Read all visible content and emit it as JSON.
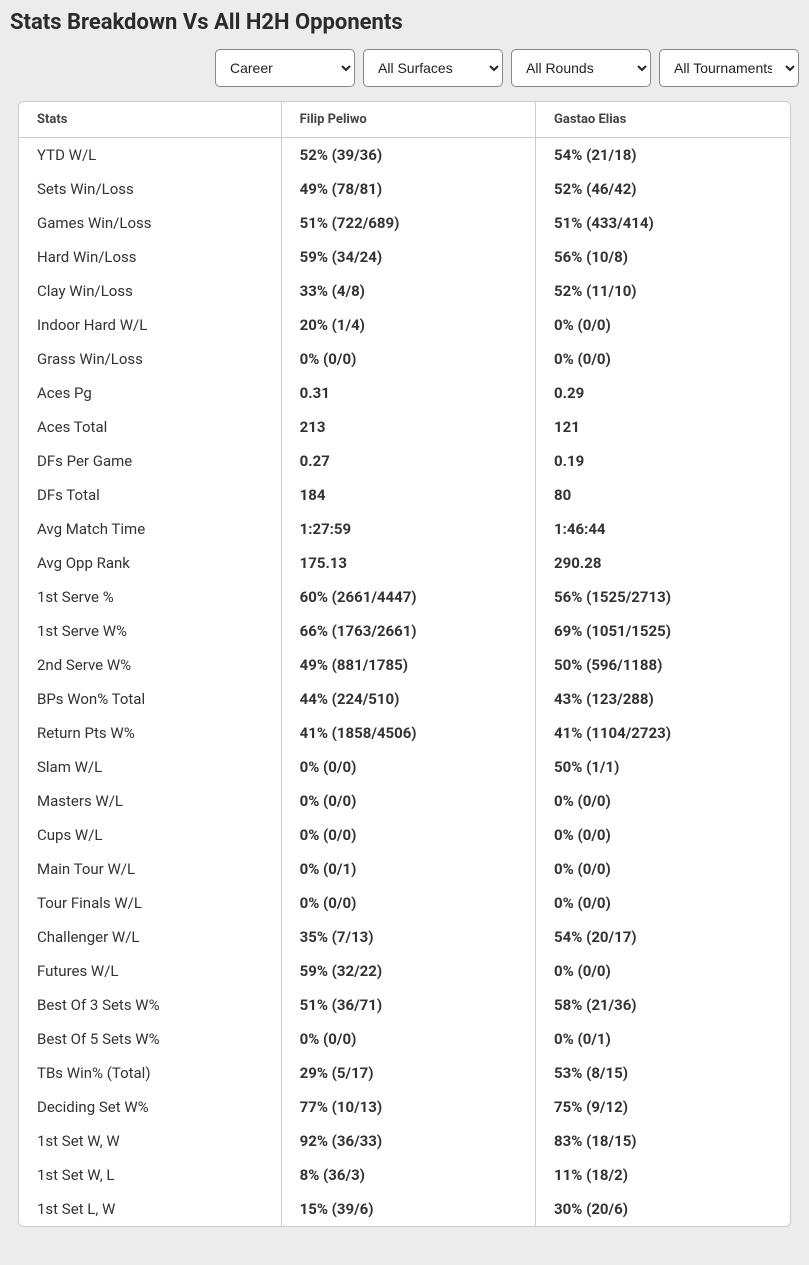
{
  "title": "Stats Breakdown Vs All H2H Opponents",
  "filters": {
    "period": {
      "options": [
        "Career"
      ],
      "selected": "Career"
    },
    "surface": {
      "options": [
        "All Surfaces"
      ],
      "selected": "All Surfaces"
    },
    "round": {
      "options": [
        "All Rounds"
      ],
      "selected": "All Rounds"
    },
    "tournament": {
      "options": [
        "All Tournaments"
      ],
      "selected": "All Tournaments"
    }
  },
  "columns": [
    "Stats",
    "Filip Peliwo",
    "Gastao Elias"
  ],
  "rows": [
    {
      "label": "YTD W/L",
      "p1": "52% (39/36)",
      "p2": "54% (21/18)"
    },
    {
      "label": "Sets Win/Loss",
      "p1": "49% (78/81)",
      "p2": "52% (46/42)"
    },
    {
      "label": "Games Win/Loss",
      "p1": "51% (722/689)",
      "p2": "51% (433/414)"
    },
    {
      "label": "Hard Win/Loss",
      "p1": "59% (34/24)",
      "p2": "56% (10/8)"
    },
    {
      "label": "Clay Win/Loss",
      "p1": "33% (4/8)",
      "p2": "52% (11/10)"
    },
    {
      "label": "Indoor Hard W/L",
      "p1": "20% (1/4)",
      "p2": "0% (0/0)"
    },
    {
      "label": "Grass Win/Loss",
      "p1": "0% (0/0)",
      "p2": "0% (0/0)"
    },
    {
      "label": "Aces Pg",
      "p1": "0.31",
      "p2": "0.29"
    },
    {
      "label": "Aces Total",
      "p1": "213",
      "p2": "121"
    },
    {
      "label": "DFs Per Game",
      "p1": "0.27",
      "p2": "0.19"
    },
    {
      "label": "DFs Total",
      "p1": "184",
      "p2": "80"
    },
    {
      "label": "Avg Match Time",
      "p1": "1:27:59",
      "p2": "1:46:44"
    },
    {
      "label": "Avg Opp Rank",
      "p1": "175.13",
      "p2": "290.28"
    },
    {
      "label": "1st Serve %",
      "p1": "60% (2661/4447)",
      "p2": "56% (1525/2713)"
    },
    {
      "label": "1st Serve W%",
      "p1": "66% (1763/2661)",
      "p2": "69% (1051/1525)"
    },
    {
      "label": "2nd Serve W%",
      "p1": "49% (881/1785)",
      "p2": "50% (596/1188)"
    },
    {
      "label": "BPs Won% Total",
      "p1": "44% (224/510)",
      "p2": "43% (123/288)"
    },
    {
      "label": "Return Pts W%",
      "p1": "41% (1858/4506)",
      "p2": "41% (1104/2723)"
    },
    {
      "label": "Slam W/L",
      "p1": "0% (0/0)",
      "p2": "50% (1/1)"
    },
    {
      "label": "Masters W/L",
      "p1": "0% (0/0)",
      "p2": "0% (0/0)"
    },
    {
      "label": "Cups W/L",
      "p1": "0% (0/0)",
      "p2": "0% (0/0)"
    },
    {
      "label": "Main Tour W/L",
      "p1": "0% (0/1)",
      "p2": "0% (0/0)"
    },
    {
      "label": "Tour Finals W/L",
      "p1": "0% (0/0)",
      "p2": "0% (0/0)"
    },
    {
      "label": "Challenger W/L",
      "p1": "35% (7/13)",
      "p2": "54% (20/17)"
    },
    {
      "label": "Futures W/L",
      "p1": "59% (32/22)",
      "p2": "0% (0/0)"
    },
    {
      "label": "Best Of 3 Sets W%",
      "p1": "51% (36/71)",
      "p2": "58% (21/36)"
    },
    {
      "label": "Best Of 5 Sets W%",
      "p1": "0% (0/0)",
      "p2": "0% (0/1)"
    },
    {
      "label": "TBs Win% (Total)",
      "p1": "29% (5/17)",
      "p2": "53% (8/15)"
    },
    {
      "label": "Deciding Set W%",
      "p1": "77% (10/13)",
      "p2": "75% (9/12)"
    },
    {
      "label": "1st Set W, W",
      "p1": "92% (36/33)",
      "p2": "83% (18/15)"
    },
    {
      "label": "1st Set W, L",
      "p1": "8% (36/3)",
      "p2": "11% (18/2)"
    },
    {
      "label": "1st Set L, W",
      "p1": "15% (39/6)",
      "p2": "30% (20/6)"
    }
  ]
}
